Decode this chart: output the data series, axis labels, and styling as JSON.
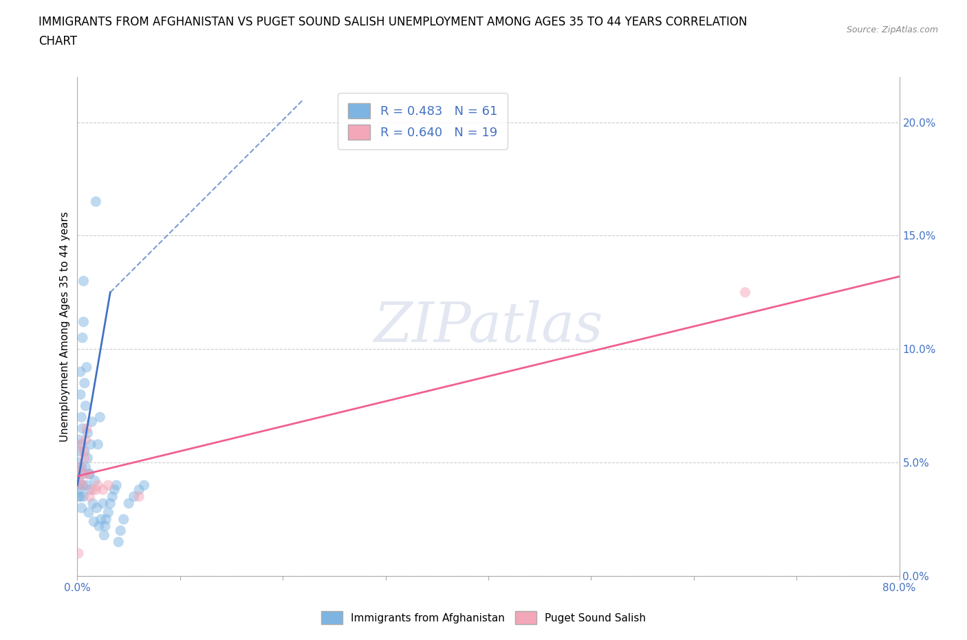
{
  "title_line1": "IMMIGRANTS FROM AFGHANISTAN VS PUGET SOUND SALISH UNEMPLOYMENT AMONG AGES 35 TO 44 YEARS CORRELATION",
  "title_line2": "CHART",
  "source": "Source: ZipAtlas.com",
  "ylabel": "Unemployment Among Ages 35 to 44 years",
  "legend_label1": "Immigrants from Afghanistan",
  "legend_label2": "Puget Sound Salish",
  "R1": "0.483",
  "N1": "61",
  "R2": "0.640",
  "N2": "19",
  "color1": "#7EB4E2",
  "color2": "#F4A7B9",
  "trendline1_color": "#4472C4",
  "trendline2_color": "#F06090",
  "watermark": "ZIPatlas",
  "xlim": [
    0.0,
    0.8
  ],
  "ylim": [
    0.0,
    0.22
  ],
  "yticks": [
    0.0,
    0.05,
    0.1,
    0.15,
    0.2
  ],
  "scatter1_x": [
    0.001,
    0.001,
    0.001,
    0.002,
    0.002,
    0.002,
    0.002,
    0.003,
    0.003,
    0.003,
    0.003,
    0.004,
    0.004,
    0.004,
    0.004,
    0.005,
    0.005,
    0.005,
    0.005,
    0.006,
    0.006,
    0.006,
    0.007,
    0.007,
    0.008,
    0.008,
    0.009,
    0.009,
    0.01,
    0.01,
    0.011,
    0.011,
    0.012,
    0.012,
    0.013,
    0.014,
    0.015,
    0.016,
    0.017,
    0.018,
    0.019,
    0.02,
    0.021,
    0.022,
    0.023,
    0.025,
    0.026,
    0.027,
    0.028,
    0.03,
    0.032,
    0.034,
    0.036,
    0.038,
    0.04,
    0.042,
    0.045,
    0.05,
    0.055,
    0.06,
    0.065
  ],
  "scatter1_y": [
    0.05,
    0.042,
    0.035,
    0.04,
    0.055,
    0.038,
    0.06,
    0.035,
    0.08,
    0.09,
    0.046,
    0.03,
    0.07,
    0.048,
    0.058,
    0.045,
    0.105,
    0.04,
    0.065,
    0.035,
    0.13,
    0.112,
    0.085,
    0.055,
    0.048,
    0.075,
    0.092,
    0.04,
    0.052,
    0.063,
    0.045,
    0.028,
    0.038,
    0.045,
    0.058,
    0.068,
    0.032,
    0.024,
    0.042,
    0.165,
    0.03,
    0.058,
    0.022,
    0.07,
    0.025,
    0.032,
    0.018,
    0.022,
    0.025,
    0.028,
    0.032,
    0.035,
    0.038,
    0.04,
    0.015,
    0.02,
    0.025,
    0.032,
    0.035,
    0.038,
    0.04
  ],
  "scatter2_x": [
    0.001,
    0.002,
    0.003,
    0.003,
    0.004,
    0.005,
    0.006,
    0.007,
    0.008,
    0.009,
    0.01,
    0.012,
    0.015,
    0.018,
    0.02,
    0.025,
    0.03,
    0.06,
    0.65
  ],
  "scatter2_y": [
    0.01,
    0.042,
    0.048,
    0.058,
    0.045,
    0.04,
    0.055,
    0.052,
    0.06,
    0.065,
    0.045,
    0.035,
    0.038,
    0.038,
    0.04,
    0.038,
    0.04,
    0.035,
    0.125
  ],
  "trend1_x0": 0.0,
  "trend1_y0": 0.04,
  "trend1_x1": 0.032,
  "trend1_y1": 0.125,
  "trend1_xdash0": 0.032,
  "trend1_ydash0": 0.125,
  "trend1_xdash1": 0.22,
  "trend1_ydash1": 0.21,
  "trend2_x0": 0.0,
  "trend2_y0": 0.044,
  "trend2_x1": 0.8,
  "trend2_y1": 0.132,
  "background_color": "#ffffff",
  "grid_color": "#cccccc",
  "title_fontsize": 12,
  "axis_label_fontsize": 11,
  "tick_fontsize": 11,
  "scatter_size": 120,
  "scatter_alpha": 0.5
}
